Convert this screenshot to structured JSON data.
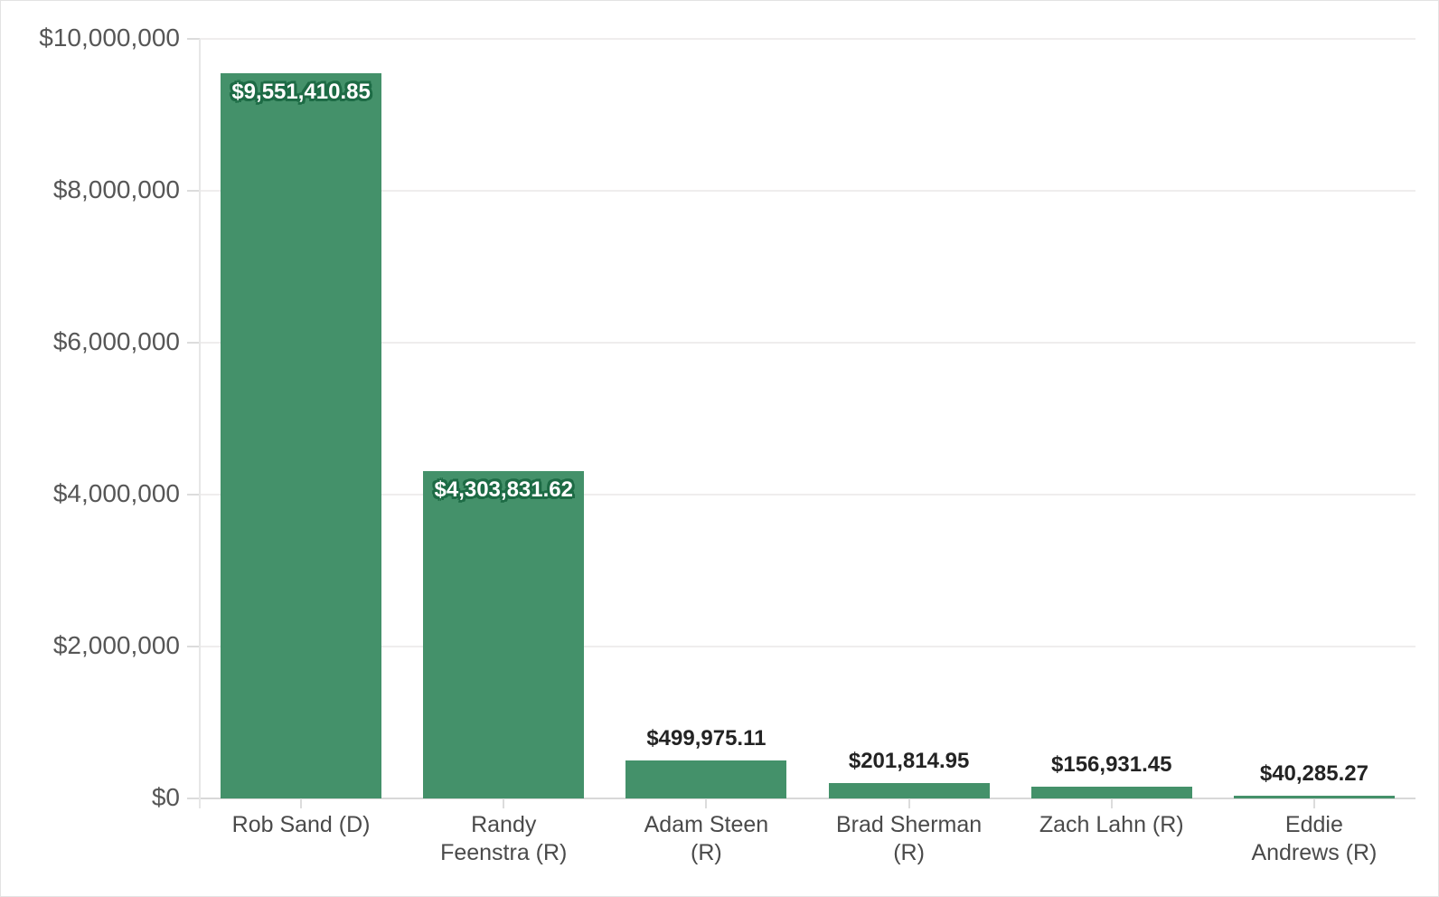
{
  "chart_data": {
    "type": "bar",
    "orientation": "vertical",
    "title": "",
    "xlabel": "",
    "ylabel": "",
    "categories": [
      "Rob Sand (D)",
      "Randy\nFeenstra (R)",
      "Adam Steen\n(R)",
      "Brad Sherman\n(R)",
      "Zach Lahn (R)",
      "Eddie\nAndrews (R)"
    ],
    "values": [
      9551410.85,
      4303831.62,
      499975.11,
      201814.95,
      156931.45,
      40285.27
    ],
    "value_labels": [
      "$9,551,410.85",
      "$4,303,831.62",
      "$499,975.11",
      "$201,814.95",
      "$156,931.45",
      "$40,285.27"
    ],
    "label_placement": [
      "inside",
      "inside",
      "above",
      "above",
      "above",
      "above"
    ],
    "ylim": [
      0,
      10000000
    ],
    "y_ticks": [
      {
        "value": 0,
        "label": "$0"
      },
      {
        "value": 2000000,
        "label": "$2,000,000"
      },
      {
        "value": 4000000,
        "label": "$4,000,000"
      },
      {
        "value": 6000000,
        "label": "$6,000,000"
      },
      {
        "value": 8000000,
        "label": "$8,000,000"
      },
      {
        "value": 10000000,
        "label": "$10,000,000"
      }
    ],
    "grid": "horizontal",
    "legend": "none",
    "colors": {
      "bar": "#44916a",
      "inside_label_text": "#ffffff",
      "inside_label_outline": "#1d6b45",
      "above_label_text": "#232323",
      "above_label_halo": "#ffffff",
      "y_axis_text": "#565656",
      "x_axis_text": "#4a4a4a",
      "gridline": "#efeded",
      "baseline": "#d8d8d8",
      "tick": "#dcdcdc",
      "axis_line": "#e7e7e7",
      "frame_border": "#e3e3e3",
      "background": "#ffffff"
    }
  }
}
